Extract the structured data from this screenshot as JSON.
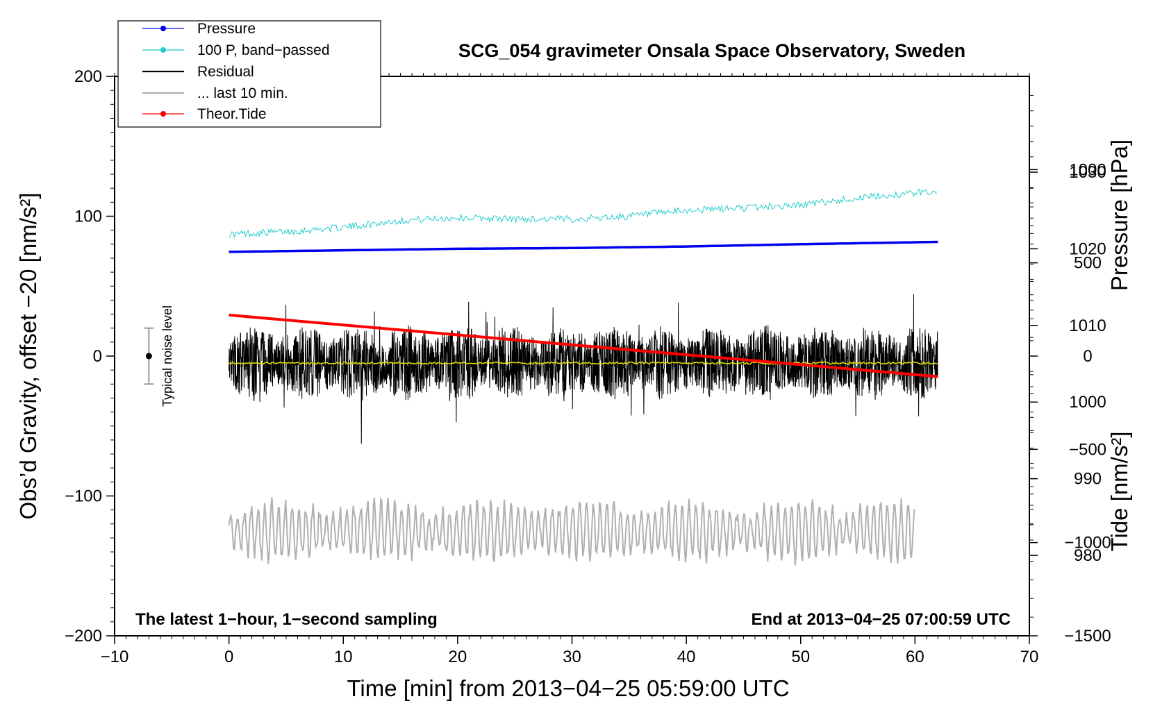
{
  "chart_data": {
    "type": "line",
    "title": "SCG_054 gravimeter Onsala Space Observatory, Sweden",
    "xlabel": "Time [min] from 2013−04−25 05:59:00 UTC",
    "ylabel": "Obs’d Gravity, offset −20 [nm/s²]",
    "y2label": "Pressure [hPa]",
    "y3label": "Tide [nm/s²]",
    "xlim": [
      -10,
      70
    ],
    "ylim": [
      -200,
      200
    ],
    "y2_range_hPa": [
      969.5,
      1042.5
    ],
    "y3_range": [
      -1500,
      1500
    ],
    "x_ticks": [
      "−10",
      "0",
      "10",
      "20",
      "30",
      "40",
      "50",
      "60",
      "70"
    ],
    "y_ticks": [
      "200",
      "100",
      "0",
      "−100",
      "−200"
    ],
    "y2_ticks": [
      "1030",
      "1020",
      "1010",
      "1000",
      "990",
      "980"
    ],
    "y3_ticks": [
      "1000",
      "500",
      "0",
      "−500",
      "−1000",
      "−1500"
    ],
    "legend": {
      "position": "top-left",
      "entries": [
        "Pressure",
        "100 P, band−passed",
        "Residual",
        "... last 10 min.",
        "Theor.Tide"
      ]
    },
    "annotations": {
      "bottom_left": "The latest 1−hour, 1−second sampling",
      "bottom_right": "End at 2013−04−25 07:00:59 UTC",
      "noise_label": "Typical noise level"
    },
    "noise_bar": {
      "x": -7,
      "y": 0,
      "low": -20,
      "high": 20
    },
    "series": [
      {
        "name": "Pressure",
        "axis": "pressure",
        "color": "#0000ee",
        "x": [
          0,
          10,
          20,
          30,
          40,
          50,
          62
        ],
        "values": [
          1019.6,
          1019.8,
          1020.0,
          1020.1,
          1020.3,
          1020.6,
          1020.9
        ]
      },
      {
        "name": "100 P, band−passed",
        "axis": "gravity",
        "color": "#22cccc",
        "x": [
          0,
          5,
          10,
          15,
          20,
          25,
          30,
          35,
          40,
          45,
          50,
          55,
          62
        ],
        "values": [
          87,
          89,
          92,
          97,
          99,
          98,
          98,
          100,
          104,
          106,
          108,
          113,
          118
        ]
      },
      {
        "name": "Residual",
        "axis": "gravity",
        "color": "#000000",
        "x": [
          0,
          62
        ],
        "values": [
          -5,
          -5
        ],
        "amplitude": 22
      },
      {
        "name": "Residual mean",
        "axis": "gravity",
        "color": "#dddd00",
        "x": [
          0,
          62
        ],
        "values": [
          -5,
          -5
        ]
      },
      {
        "name": "... last 10 min.",
        "axis": "gravity",
        "color": "#b0b0b0",
        "x": [
          0,
          60
        ],
        "values": [
          -125,
          -125
        ],
        "amplitude": 20
      },
      {
        "name": "Theor.Tide",
        "axis": "tide",
        "color": "#ff0000",
        "x": [
          0,
          62
        ],
        "values": [
          220,
          -110
        ]
      }
    ],
    "colors": {
      "pressure": "#0000ee",
      "bandpass": "#22cccc",
      "residual": "#000000",
      "residual_mean": "#dddd00",
      "last10": "#b0b0b0",
      "tide": "#ff0000",
      "noise_bar": "#999999"
    }
  }
}
